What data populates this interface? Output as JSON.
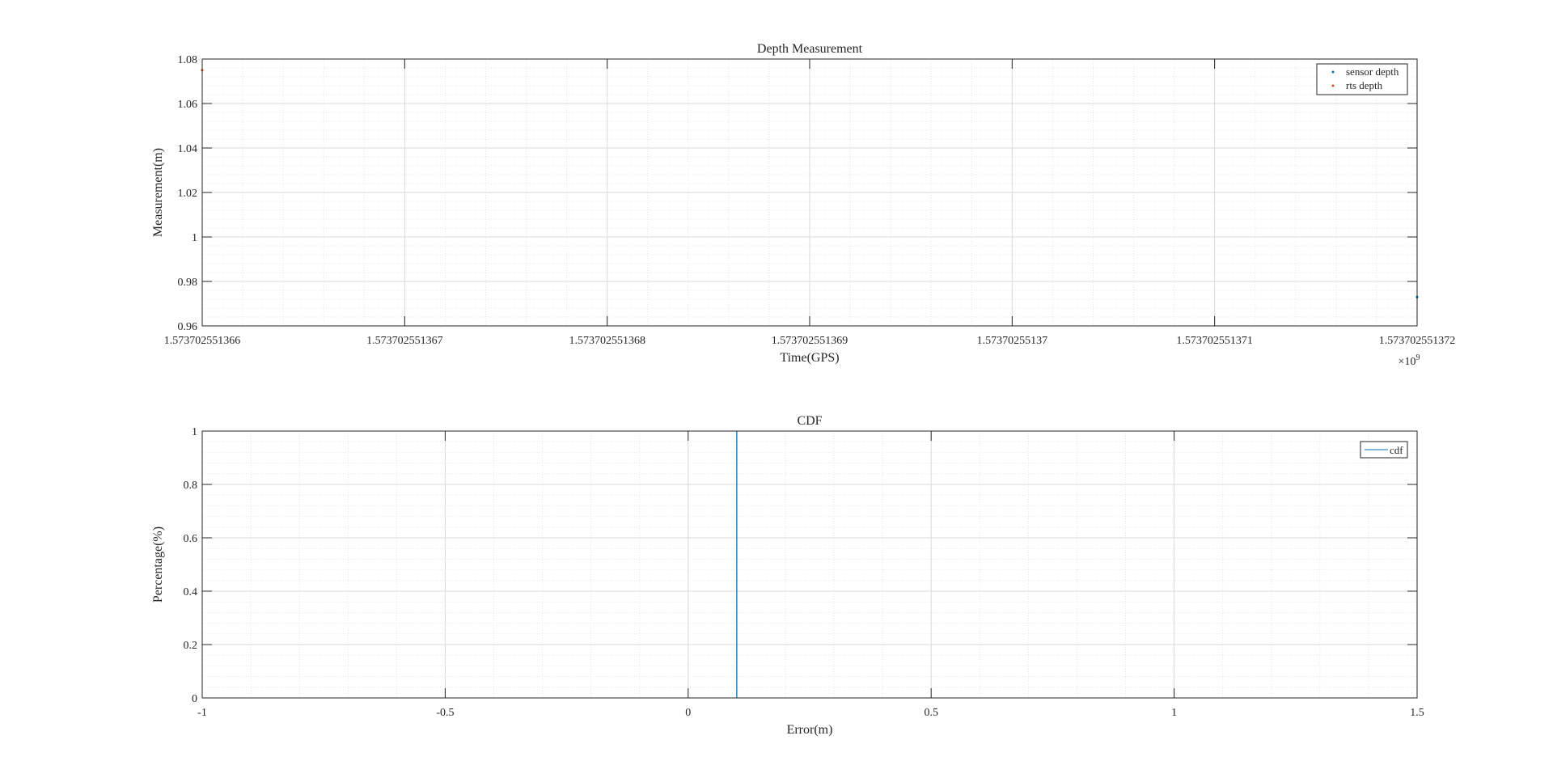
{
  "colors": {
    "series_blue": "#0072BD",
    "series_orange": "#D95319",
    "axis": "#262626",
    "grid_major": "#D9D9D9",
    "grid_minor": "#E6E6E6",
    "background": "#FFFFFF"
  },
  "chart_data": [
    {
      "type": "scatter",
      "title": "Depth Measurement",
      "xlabel": "Time(GPS)",
      "ylabel": "Measurement(m)",
      "x_exponent_label": "×10",
      "x_exponent_power": "9",
      "xlim": [
        1.573702551366,
        1.573702551372
      ],
      "ylim": [
        0.96,
        1.08
      ],
      "x_ticks": [
        1.573702551366,
        1.573702551367,
        1.573702551368,
        1.573702551369,
        1.57370255137,
        1.573702551371,
        1.573702551372
      ],
      "x_tick_labels": [
        "1.573702551366",
        "1.573702551367",
        "1.573702551368",
        "1.573702551369",
        "1.57370255137",
        "1.573702551371",
        "1.573702551372"
      ],
      "y_ticks": [
        0.96,
        0.98,
        1.0,
        1.02,
        1.04,
        1.06,
        1.08
      ],
      "y_tick_labels": [
        "0.96",
        "0.98",
        "1",
        "1.02",
        "1.04",
        "1.06",
        "1.08"
      ],
      "grid": true,
      "minor_grid": true,
      "legend_position": "top-right",
      "series": [
        {
          "name": "sensor depth",
          "color": "#0072BD",
          "x": [
            1.573702551372
          ],
          "y": [
            0.973
          ]
        },
        {
          "name": "rts depth",
          "color": "#D95319",
          "x": [
            1.573702551366
          ],
          "y": [
            1.075
          ]
        }
      ]
    },
    {
      "type": "line",
      "title": "CDF",
      "xlabel": "Error(m)",
      "ylabel": "Percentage(%)",
      "xlim": [
        -1,
        1.5
      ],
      "ylim": [
        0,
        1
      ],
      "x_ticks": [
        -1,
        -0.5,
        0,
        0.5,
        1,
        1.5
      ],
      "x_tick_labels": [
        "-1",
        "-0.5",
        "0",
        "0.5",
        "1",
        "1.5"
      ],
      "y_ticks": [
        0,
        0.2,
        0.4,
        0.6,
        0.8,
        1
      ],
      "y_tick_labels": [
        "0",
        "0.2",
        "0.4",
        "0.6",
        "0.8",
        "1"
      ],
      "grid": true,
      "minor_grid": true,
      "legend_position": "top-right",
      "series": [
        {
          "name": "cdf",
          "color": "#0072BD",
          "x": [
            0.1,
            0.1
          ],
          "y": [
            0,
            1
          ]
        }
      ]
    }
  ]
}
